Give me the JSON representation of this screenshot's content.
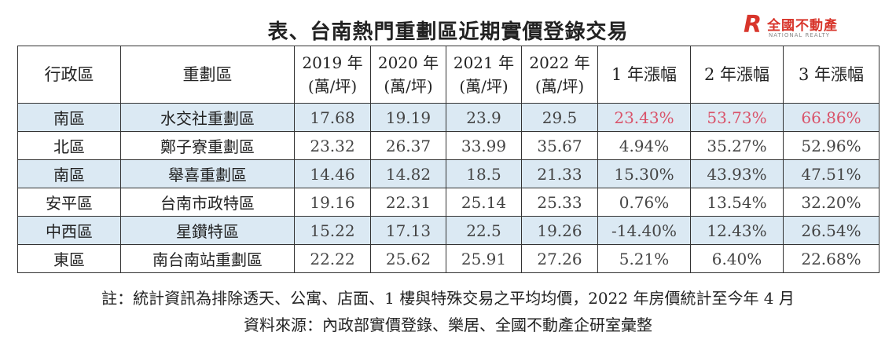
{
  "title": "表、台南熱門重劃區近期實價登錄交易",
  "logo": {
    "mark": "R",
    "name": "全國不動產",
    "sub": "NATIONAL REALTY"
  },
  "headers": {
    "district": "行政區",
    "zone": "重劃區",
    "y2019": [
      "2019 年",
      "(萬/坪)"
    ],
    "y2020": [
      "2020 年",
      "(萬/坪)"
    ],
    "y2021": [
      "2021 年",
      "(萬/坪)"
    ],
    "y2022": [
      "2022 年",
      "(萬/坪)"
    ],
    "rise1": "1 年漲幅",
    "rise2": "2 年漲幅",
    "rise3": "3 年漲幅"
  },
  "rows": [
    {
      "district": "南區",
      "zone": "水交社重劃區",
      "y2019": "17.68",
      "y2020": "19.19",
      "y2021": "23.9",
      "y2022": "29.5",
      "rise1": "23.43%",
      "rise2": "53.73%",
      "rise3": "66.86%",
      "highlight": true,
      "red": true
    },
    {
      "district": "北區",
      "zone": "鄭子寮重劃區",
      "y2019": "23.32",
      "y2020": "26.37",
      "y2021": "33.99",
      "y2022": "35.67",
      "rise1": "4.94%",
      "rise2": "35.27%",
      "rise3": "52.96%",
      "highlight": false,
      "red": false
    },
    {
      "district": "南區",
      "zone": "舉喜重劃區",
      "y2019": "14.46",
      "y2020": "14.82",
      "y2021": "18.5",
      "y2022": "21.33",
      "rise1": "15.30%",
      "rise2": "43.93%",
      "rise3": "47.51%",
      "highlight": true,
      "red": false
    },
    {
      "district": "安平區",
      "zone": "台南市政特區",
      "y2019": "19.16",
      "y2020": "22.31",
      "y2021": "25.14",
      "y2022": "25.33",
      "rise1": "0.76%",
      "rise2": "13.54%",
      "rise3": "32.20%",
      "highlight": false,
      "red": false
    },
    {
      "district": "中西區",
      "zone": "星鑽特區",
      "y2019": "15.22",
      "y2020": "17.13",
      "y2021": "22.5",
      "y2022": "19.26",
      "rise1": "-14.40%",
      "rise2": "12.43%",
      "rise3": "26.54%",
      "highlight": true,
      "red": false
    },
    {
      "district": "東區",
      "zone": "南台南站重劃區",
      "y2019": "22.22",
      "y2020": "25.62",
      "y2021": "25.91",
      "y2022": "27.26",
      "rise1": "5.21%",
      "rise2": "6.40%",
      "rise3": "22.68%",
      "highlight": false,
      "red": false
    }
  ],
  "note": "註：統計資訊為排除透天、公寓、店面、1 樓與特殊交易之平均均價，2022 年房價統計至今年 4 月",
  "source": "資料來源：內政部實價登錄、樂居、全國不動產企研室彙整",
  "colors": {
    "highlight_row": "#dbe9f3",
    "red_value": "#d9536a",
    "logo_red": "#d8352b"
  }
}
